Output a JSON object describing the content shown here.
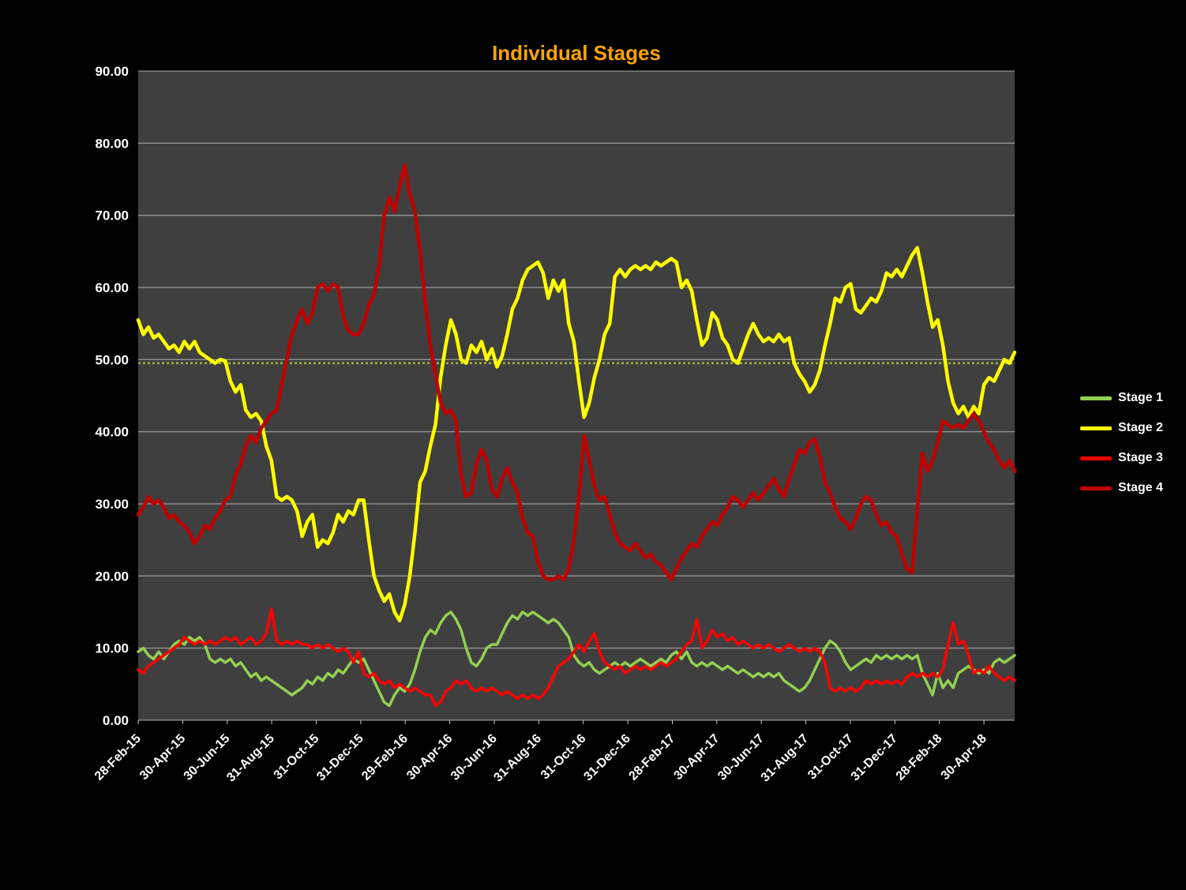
{
  "colors": {
    "background": "#000000",
    "plot_background": "#3F3F3F",
    "gridline": "#C6C6C6",
    "axis_text": "#FFFFFF",
    "title": "#FFA500"
  },
  "chart_data": {
    "type": "line",
    "title": "Individual Stages",
    "xlabel": "",
    "ylabel": "",
    "ylim": [
      0,
      90
    ],
    "y_tick_step": 10,
    "grid": true,
    "legend_position": "right",
    "n_points": 172,
    "x_tick_last_index": 165,
    "x_tick_labels": [
      "28-Feb-15",
      "30-Apr-15",
      "30-Jun-15",
      "31-Aug-15",
      "31-Oct-15",
      "31-Dec-15",
      "29-Feb-16",
      "30-Apr-16",
      "30-Jun-16",
      "31-Aug-16",
      "31-Oct-16",
      "31-Dec-16",
      "28-Feb-17",
      "30-Apr-17",
      "30-Jun-17",
      "31-Aug-17",
      "31-Oct-17",
      "31-Dec-17",
      "28-Feb-18",
      "30-Apr-18"
    ],
    "reference_line": {
      "value": 49.5,
      "color": "#A3B53C",
      "style": "dotted"
    },
    "series": [
      {
        "name": "Stage 1",
        "color": "#92D050",
        "width": 3.5,
        "values": [
          9.5,
          10,
          9,
          8.5,
          9.5,
          8.5,
          9.5,
          10.5,
          11,
          10.5,
          11.5,
          11,
          11.5,
          10.5,
          8.5,
          8,
          8.5,
          8,
          8.5,
          7.5,
          8,
          7,
          6,
          6.5,
          5.5,
          6,
          5.5,
          5,
          4.5,
          4,
          3.5,
          4,
          4.5,
          5.5,
          5,
          6,
          5.5,
          6.5,
          6,
          7,
          6.5,
          7.5,
          8.5,
          8,
          8.5,
          7,
          5.5,
          4,
          2.5,
          2,
          3.5,
          4.5,
          4,
          5,
          7,
          9.5,
          11.5,
          12.5,
          12,
          13.5,
          14.5,
          15,
          14,
          12.5,
          10,
          8,
          7.5,
          8.5,
          10,
          10.5,
          10.5,
          12,
          13.5,
          14.5,
          14,
          15,
          14.5,
          15,
          14.5,
          14,
          13.5,
          14,
          13.5,
          12.5,
          11.5,
          9,
          8,
          7.5,
          8,
          7,
          6.5,
          7,
          7.5,
          8,
          7.5,
          8,
          7.5,
          8,
          8.5,
          8,
          7.5,
          8,
          8.5,
          8,
          9,
          9.5,
          8.5,
          9.5,
          8,
          7.5,
          8,
          7.5,
          8,
          7.5,
          7,
          7.5,
          7,
          6.5,
          7,
          6.5,
          6,
          6.5,
          6,
          6.5,
          6,
          6.5,
          5.5,
          5,
          4.5,
          4,
          4.5,
          5.5,
          7,
          8.5,
          10,
          11,
          10.5,
          9.5,
          8,
          7,
          7.5,
          8,
          8.5,
          8,
          9,
          8.5,
          9,
          8.5,
          9,
          8.5,
          9,
          8.5,
          9,
          6.5,
          5,
          3.5,
          6.5,
          4.5,
          5.5,
          4.5,
          6.5,
          7,
          7.5,
          7,
          6.5,
          7,
          6.5,
          8,
          8.5,
          8,
          8.5,
          9
        ]
      },
      {
        "name": "Stage 2",
        "color": "#FFFF00",
        "width": 4.5,
        "values": [
          55.5,
          53.5,
          54.5,
          53,
          53.5,
          52.5,
          51.5,
          52,
          51,
          52.5,
          51.5,
          52.5,
          51,
          50.5,
          50,
          49.5,
          50,
          49.8,
          47,
          45.5,
          46.5,
          43,
          42,
          42.5,
          41.5,
          38,
          36,
          31,
          30.5,
          31,
          30.5,
          29,
          25.5,
          27.5,
          28.5,
          24,
          25,
          24.5,
          26,
          28.5,
          27.5,
          29,
          28.5,
          30.5,
          30.5,
          25,
          20,
          18,
          16.5,
          17.5,
          15,
          13.8,
          16,
          20,
          26,
          33,
          34.5,
          38,
          41,
          47.5,
          52,
          55.5,
          53.5,
          50,
          49.5,
          52,
          51,
          52.5,
          50,
          51.5,
          49,
          50.5,
          53.5,
          57,
          58.5,
          61,
          62.5,
          63,
          63.5,
          62,
          58.5,
          61,
          59.5,
          61,
          55,
          52.5,
          47,
          42,
          44,
          47.5,
          50,
          53.5,
          55,
          61.5,
          62.5,
          61.5,
          62.5,
          63,
          62.5,
          63,
          62.5,
          63.5,
          63,
          63.5,
          64,
          63.5,
          60,
          61,
          59.5,
          55.5,
          52,
          53,
          56.5,
          55.5,
          53,
          52,
          50,
          49.5,
          51.5,
          53.5,
          55,
          53.5,
          52.5,
          53,
          52.5,
          53.5,
          52.5,
          53,
          49.5,
          48,
          47,
          45.5,
          46.5,
          48.5,
          52,
          55,
          58.5,
          58,
          60,
          60.5,
          57,
          56.5,
          57.5,
          58.5,
          58,
          59.5,
          62,
          61.5,
          62.5,
          61.5,
          63,
          64.5,
          65.5,
          62,
          58,
          54.5,
          55.5,
          52,
          47,
          44,
          42.5,
          43.5,
          42,
          43.5,
          42.5,
          46.5,
          47.5,
          47,
          48.5,
          50,
          49.5,
          51
        ]
      },
      {
        "name": "Stage 3",
        "color": "#FF0000",
        "width": 3.5,
        "values": [
          7,
          6.5,
          7.5,
          8,
          8.5,
          9,
          9.5,
          10,
          10.5,
          11.5,
          11,
          10.5,
          11,
          10.5,
          11,
          10.5,
          11,
          11.5,
          11,
          11.5,
          10.5,
          11,
          11.5,
          10.5,
          11,
          12,
          15.5,
          11,
          10.5,
          11,
          10.5,
          11,
          10.5,
          10.5,
          10,
          10.5,
          10,
          10.5,
          10,
          9.5,
          10,
          9.5,
          8,
          9.5,
          6.5,
          6,
          6.5,
          5.5,
          5,
          5.5,
          4.5,
          5,
          4.5,
          4,
          4.5,
          4,
          3.5,
          3.5,
          2,
          2.5,
          4,
          4.5,
          5.5,
          5,
          5.5,
          4.5,
          4,
          4.5,
          4,
          4.5,
          4,
          3.5,
          4,
          3.5,
          3,
          3.5,
          3,
          3.5,
          3,
          3.5,
          4.5,
          6,
          7.5,
          8,
          8.5,
          9.5,
          10.5,
          9.5,
          11,
          12,
          9.5,
          8,
          7.5,
          7,
          7.5,
          6.5,
          7,
          7.5,
          7,
          7.5,
          7,
          7.5,
          8,
          7.5,
          8,
          8.5,
          9.5,
          10.5,
          11,
          14,
          10,
          11,
          12.5,
          11.5,
          12,
          11,
          11.5,
          10.5,
          11,
          10.5,
          10,
          10.5,
          10,
          10.5,
          10,
          9.5,
          10,
          10.5,
          10,
          9.5,
          10,
          9.5,
          10,
          9.5,
          8,
          4.5,
          4,
          4.5,
          4,
          4.5,
          4,
          4.5,
          5.5,
          5,
          5.5,
          5,
          5.5,
          5,
          5.5,
          5,
          6,
          6.5,
          6,
          6.5,
          6,
          6.5,
          6,
          7,
          10.5,
          13.5,
          10.5,
          11,
          9,
          6.5,
          7,
          6.5,
          7.5,
          6.5,
          6,
          5.5,
          6,
          5.5
        ]
      },
      {
        "name": "Stage 4",
        "color": "#C00000",
        "width": 4.5,
        "values": [
          28.5,
          29.5,
          31,
          30,
          30.5,
          29.5,
          28,
          28.5,
          27.5,
          27,
          26,
          24.5,
          25.5,
          27,
          26.5,
          28,
          29,
          30.5,
          31,
          34,
          35.5,
          38,
          39.5,
          38.5,
          40.5,
          41.5,
          42.5,
          43,
          46.5,
          50,
          53.5,
          55.5,
          57,
          55,
          56.5,
          60,
          60.5,
          59.5,
          60.5,
          60,
          56,
          54,
          53.5,
          53.5,
          55,
          57.5,
          59,
          63,
          70,
          72.5,
          70.5,
          74,
          77,
          73,
          70.5,
          65,
          58,
          52,
          48,
          44,
          42.5,
          43,
          41.5,
          34,
          31,
          31.5,
          35.5,
          37.5,
          36,
          32,
          31,
          33.5,
          35,
          33,
          31.5,
          28,
          26,
          25.5,
          22,
          20,
          19.5,
          19.5,
          20,
          19.5,
          21,
          25,
          31,
          39.5,
          36,
          32.5,
          30.5,
          31,
          28.5,
          26,
          24.5,
          24,
          23.5,
          24.5,
          23.5,
          22.5,
          23,
          22,
          21.5,
          20.5,
          19.5,
          21,
          22.5,
          23.5,
          24.5,
          24,
          25.5,
          26.5,
          27.5,
          27,
          28.5,
          29.5,
          31,
          30.5,
          29.5,
          30.5,
          31.5,
          30.5,
          31.5,
          32.5,
          33.5,
          32,
          31,
          33.5,
          35.5,
          37.5,
          37,
          38.5,
          39,
          36.5,
          33,
          31.5,
          29.5,
          28,
          27.5,
          26.5,
          28,
          30,
          31,
          30.5,
          28.5,
          27,
          27.5,
          26,
          25.5,
          23,
          21,
          20.5,
          29,
          37,
          34.5,
          36,
          38.5,
          41.5,
          41,
          40.5,
          41,
          40.5,
          41.5,
          42.5,
          41.5,
          40,
          38.5,
          37.5,
          36,
          35,
          36,
          34.5
        ]
      }
    ]
  }
}
